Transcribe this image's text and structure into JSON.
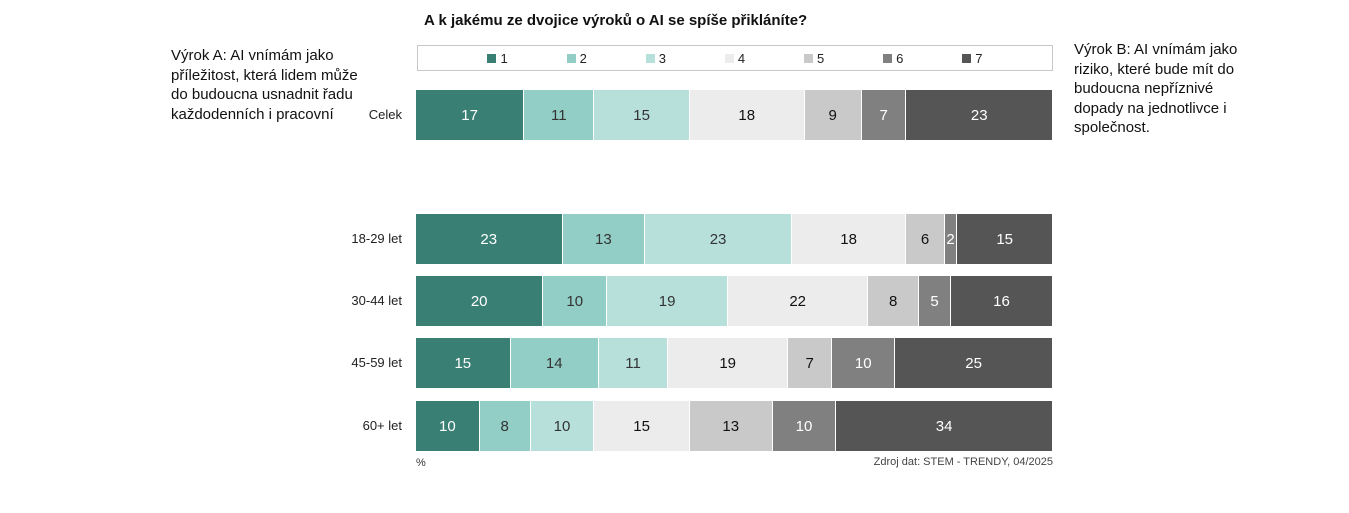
{
  "chart_data": {
    "type": "bar",
    "stacked": true,
    "orientation": "horizontal",
    "title": "A k jakému ze dvojice výroků o AI se spíše přikláníte?",
    "categories": [
      "Celek",
      "18-29 let",
      "30-44 let",
      "45-59 let",
      "60+ let"
    ],
    "legend": [
      "1",
      "2",
      "3",
      "4",
      "5",
      "6",
      "7"
    ],
    "legend_position": "top",
    "colors": [
      "#3a7f74",
      "#93cec6",
      "#b7e0db",
      "#ececec",
      "#c9c9c9",
      "#808080",
      "#555555"
    ],
    "label_colors": [
      "#ffffff",
      "#333333",
      "#333333",
      "#111111",
      "#111111",
      "#ffffff",
      "#ffffff"
    ],
    "series": [
      {
        "name": "1",
        "values": [
          17,
          23,
          20,
          15,
          10
        ]
      },
      {
        "name": "2",
        "values": [
          11,
          13,
          10,
          14,
          8
        ]
      },
      {
        "name": "3",
        "values": [
          15,
          23,
          19,
          11,
          10
        ]
      },
      {
        "name": "4",
        "values": [
          18,
          18,
          22,
          19,
          15
        ]
      },
      {
        "name": "5",
        "values": [
          9,
          6,
          8,
          7,
          13
        ]
      },
      {
        "name": "6",
        "values": [
          7,
          2,
          5,
          10,
          10
        ]
      },
      {
        "name": "7",
        "values": [
          23,
          15,
          16,
          25,
          34
        ]
      }
    ],
    "xlabel": "%",
    "source": "Zdroj dat: STEM - TRENDY, 04/2025"
  },
  "statements": {
    "a": "Výrok A: AI vnímám jako příležitost, která lidem může do budoucna usnadnit řadu každodenních i pracovní",
    "b": "Výrok B: AI vnímám jako riziko, které bude mít do budoucna nepříznivé dopady na jednotlivce i společnost."
  }
}
